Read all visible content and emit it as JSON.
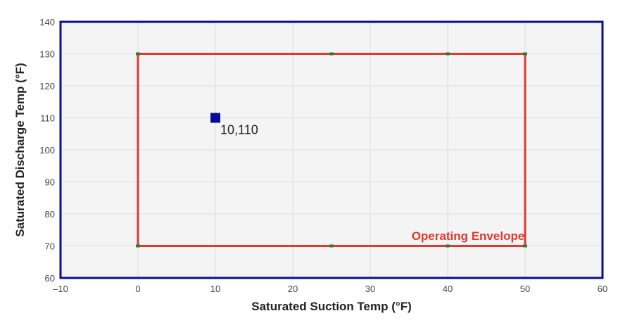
{
  "chart_data": {
    "type": "scatter",
    "title": "",
    "xlabel": "Saturated Suction Temp (°F)",
    "ylabel": "Saturated Discharge Temp (°F)",
    "xlim": [
      -10,
      60
    ],
    "ylim": [
      60,
      140
    ],
    "xticks": [
      -10,
      0,
      10,
      20,
      30,
      40,
      50,
      60
    ],
    "yticks": [
      60,
      70,
      80,
      90,
      100,
      110,
      120,
      130,
      140
    ],
    "xtick_labels": [
      "–10",
      "0",
      "10",
      "20",
      "30",
      "40",
      "50",
      "60"
    ],
    "ytick_labels": [
      "60",
      "70",
      "80",
      "90",
      "100",
      "110",
      "120",
      "130",
      "140"
    ],
    "grid": true,
    "series": [
      {
        "name": "Operating Envelope",
        "type": "line",
        "color": "#e03a2f",
        "marker_color": "#2e7d32",
        "x": [
          0,
          25,
          40,
          50,
          50,
          40,
          25,
          0,
          0
        ],
        "y": [
          130,
          130,
          130,
          130,
          70,
          70,
          70,
          70,
          130
        ]
      },
      {
        "type": "scatter",
        "color": "#0a0a9a",
        "x": [
          10
        ],
        "y": [
          110
        ],
        "labels": [
          "10,110"
        ]
      }
    ],
    "annotations": [
      {
        "text": "Operating Envelope",
        "x": 43,
        "y": 73,
        "color": "#e03a2f"
      }
    ],
    "colors": {
      "plot_background": "#f4f4f4",
      "plot_border": "#0d0d8a",
      "grid": "#dddddd"
    }
  }
}
